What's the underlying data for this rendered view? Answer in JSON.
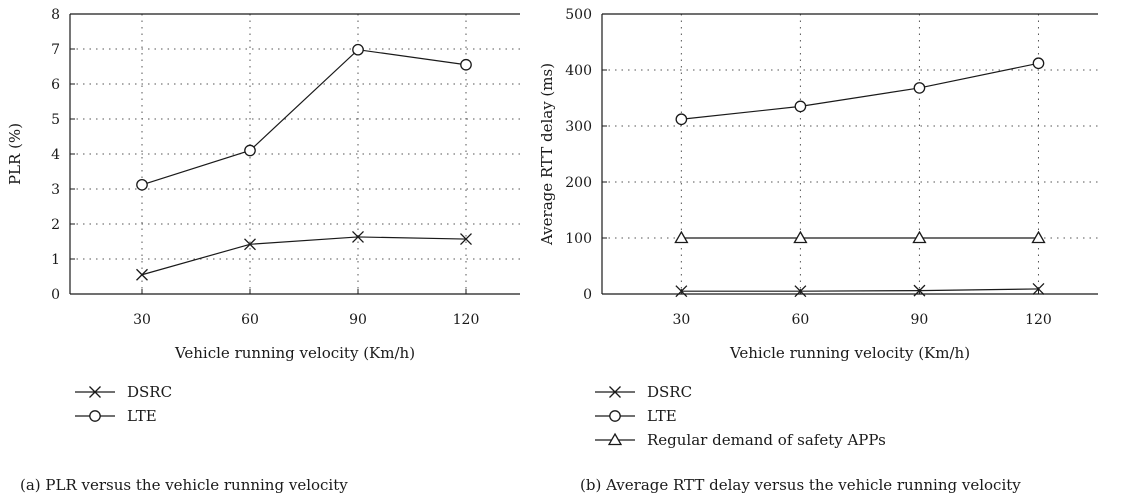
{
  "chart_data": [
    {
      "type": "line",
      "x": [
        30,
        60,
        90,
        120
      ],
      "xlabel": "Vehicle running velocity (Km/h)",
      "ylabel": "PLR (%)",
      "xlim": [
        10,
        135
      ],
      "ylim": [
        0,
        8
      ],
      "yticks": [
        0,
        1,
        2,
        3,
        4,
        5,
        6,
        7,
        8
      ],
      "grid": true,
      "legend_position": "bottom-left",
      "caption": "(a)  PLR versus the vehicle running velocity",
      "series": [
        {
          "name": "DSRC",
          "marker": "x",
          "values": [
            0.55,
            1.42,
            1.63,
            1.57
          ]
        },
        {
          "name": "LTE",
          "marker": "circle",
          "values": [
            3.12,
            4.1,
            6.98,
            6.55
          ]
        }
      ]
    },
    {
      "type": "line",
      "x": [
        30,
        60,
        90,
        120
      ],
      "xlabel": "Vehicle running velocity (Km/h)",
      "ylabel": "Average RTT delay (ms)",
      "xlim": [
        10,
        135
      ],
      "ylim": [
        0,
        500
      ],
      "yticks": [
        0,
        100,
        200,
        300,
        400,
        500
      ],
      "grid": true,
      "legend_position": "bottom-left",
      "caption": "(b)  Average RTT delay versus the vehicle running velocity",
      "series": [
        {
          "name": "DSRC",
          "marker": "x",
          "values": [
            5,
            5,
            6,
            9
          ]
        },
        {
          "name": "LTE",
          "marker": "circle",
          "values": [
            312,
            335,
            368,
            412
          ]
        },
        {
          "name": "Regular demand of safety APPs",
          "marker": "triangle",
          "values": [
            100,
            100,
            100,
            100
          ]
        }
      ]
    }
  ]
}
